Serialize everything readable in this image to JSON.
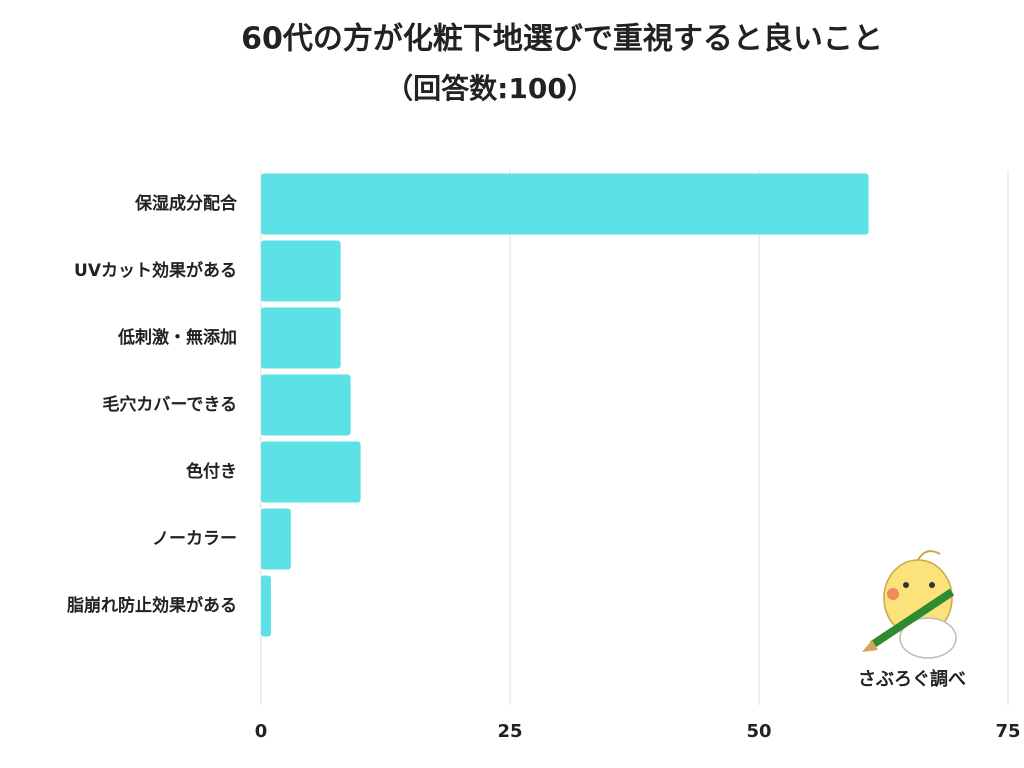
{
  "chart_data": {
    "type": "barh",
    "title": "60代の方が化粧下地選びで重視すると良いこと",
    "subtitle": "（回答数:100）",
    "categories": [
      "保湿成分配合",
      "UVカット効果がある",
      "低刺激・無添加",
      "毛穴カバーできる",
      "色付き",
      "ノーカラー",
      "脂崩れ防止効果がある"
    ],
    "values": [
      61,
      8,
      8,
      9,
      10,
      3,
      1
    ],
    "color": "#5ce1e6",
    "xlim": [
      0,
      75
    ],
    "xticks": [
      0,
      25,
      50,
      75
    ],
    "grid": true,
    "watermark": "さぶろぐ調べ"
  }
}
